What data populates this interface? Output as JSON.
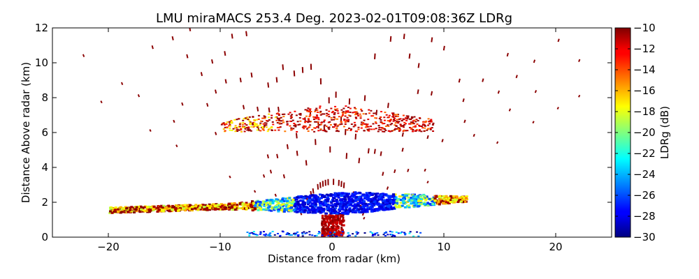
{
  "chart_data": {
    "type": "heatmap",
    "title": "LMU miraMACS 253.4 Deg. 2023-02-01T09:08:36Z  LDRg",
    "xlabel": "Distance from radar (km)",
    "ylabel": "Distance Above radar  (km)",
    "xlim": [
      -25,
      25
    ],
    "ylim": [
      0,
      12
    ],
    "x_ticks": [
      -20,
      -10,
      0,
      10,
      20
    ],
    "x_tick_labels": [
      "−20",
      "−10",
      "0",
      "10",
      "20"
    ],
    "y_ticks": [
      0,
      2,
      4,
      6,
      8,
      10,
      12
    ],
    "y_tick_labels": [
      "0",
      "2",
      "4",
      "6",
      "8",
      "10",
      "12"
    ],
    "colorbar": {
      "label": "LDRg (dB)",
      "colormap": "jet",
      "range": [
        -30,
        -10
      ],
      "ticks": [
        -30,
        -28,
        -26,
        -24,
        -22,
        -20,
        -18,
        -16,
        -14,
        -12,
        -10
      ],
      "tick_labels": [
        "−30",
        "−28",
        "−26",
        "−24",
        "−22",
        "−20",
        "−18",
        "−16",
        "−14",
        "−12",
        "−10"
      ]
    },
    "layers": [
      {
        "name": "lower cloud layer",
        "x_range": [
          -20,
          12
        ],
        "height_km": [
          1.3,
          2.6
        ],
        "core_ldr_db": -29,
        "edge_ldr_db": -19
      },
      {
        "name": "upper cloud layer",
        "x_range": [
          -10,
          9
        ],
        "height_km": [
          6.0,
          7.6
        ],
        "core_ldr_db": -13,
        "edge_ldr_db": -18
      },
      {
        "name": "near-radar clutter",
        "x_range": [
          -1,
          1
        ],
        "height_km": [
          0,
          1.2
        ],
        "core_ldr_db": -10
      }
    ]
  }
}
